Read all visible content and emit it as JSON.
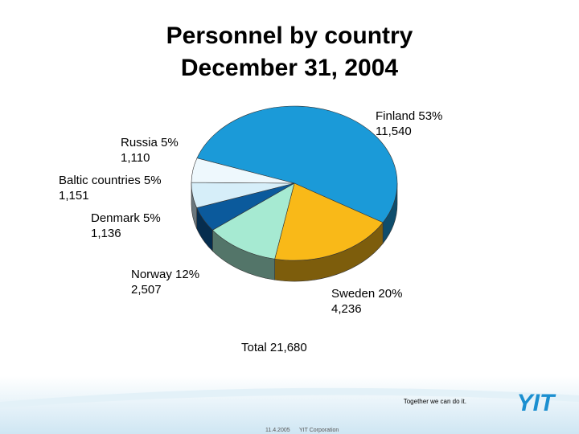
{
  "chart_data": {
    "type": "pie3d",
    "title": "Personnel by country",
    "subtitle": "December 31, 2004",
    "categories": [
      "Finland",
      "Sweden",
      "Norway",
      "Denmark",
      "Baltic countries",
      "Russia"
    ],
    "values": [
      11540,
      4236,
      2507,
      1136,
      1151,
      1110
    ],
    "value_labels": [
      "11,540",
      "4,236",
      "2,507",
      "1,136",
      "1,151",
      "1,110"
    ],
    "percents": [
      53,
      20,
      12,
      5,
      5,
      5
    ],
    "percent_labels": [
      "53%",
      "20%",
      "12%",
      "5%",
      "5%",
      "5%"
    ],
    "colors": [
      "#1b9ad8",
      "#f9b918",
      "#a6ead2",
      "#0b5a9c",
      "#d6eef9",
      "#eef8fd"
    ],
    "total_title": "Total",
    "total": {
      "value": 21680,
      "label": "21,680"
    }
  },
  "footer": {
    "slogan": "Together we can do it.",
    "logo": "YIT",
    "date": "11.4.2005",
    "company": "YIT Corporation"
  }
}
